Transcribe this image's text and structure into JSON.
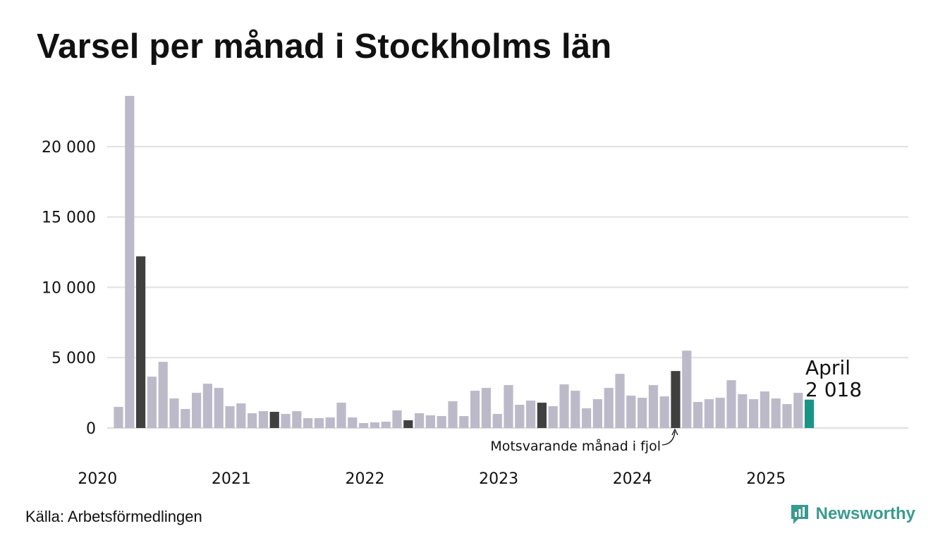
{
  "title": "Varsel per månad i Stockholms län",
  "source": "Källa: Arbetsförmedlingen",
  "brand": {
    "name": "Newsworthy",
    "icon": "newsworthy-logo-icon"
  },
  "colors": {
    "bar": "#bcbac9",
    "same_month": "#404040",
    "current": "#1a9486",
    "gridline": "#e1e1e1",
    "brand": "#3a9a8e"
  },
  "chart_data": {
    "type": "bar",
    "title": "Varsel per månad i Stockholms län",
    "xlabel": "",
    "ylabel": "",
    "ylim": [
      0,
      23600
    ],
    "yticks": [
      0,
      5000,
      10000,
      15000,
      20000
    ],
    "ytick_labels": [
      "0",
      "5 000",
      "10 000",
      "15 000",
      "20 000"
    ],
    "xtick_labels": [
      "2020",
      "2021",
      "2022",
      "2023",
      "2024",
      "2025"
    ],
    "start": "2020-02",
    "months_per_bar": 1,
    "grid": true,
    "values": [
      1500,
      23600,
      12200,
      3650,
      4700,
      2100,
      1350,
      2500,
      3150,
      2850,
      1550,
      1750,
      1050,
      1200,
      1150,
      1000,
      1200,
      700,
      700,
      750,
      1800,
      750,
      350,
      400,
      450,
      1250,
      550,
      1050,
      900,
      850,
      1900,
      850,
      2650,
      2850,
      1000,
      3050,
      1650,
      1950,
      1800,
      1550,
      3100,
      2650,
      1400,
      2050,
      2850,
      3850,
      2300,
      2150,
      3050,
      2250,
      4050,
      5500,
      1850,
      2050,
      2150,
      3400,
      2400,
      2050,
      2600,
      2100,
      1700,
      2500,
      2018
    ],
    "highlight_same_month": [
      "2020-04",
      "2021-04",
      "2022-04",
      "2023-04",
      "2024-04"
    ],
    "highlight_current": "2025-04",
    "annotation": "Motsvarande månad i fjol",
    "callout": {
      "label": "April",
      "value": "2 018"
    }
  }
}
